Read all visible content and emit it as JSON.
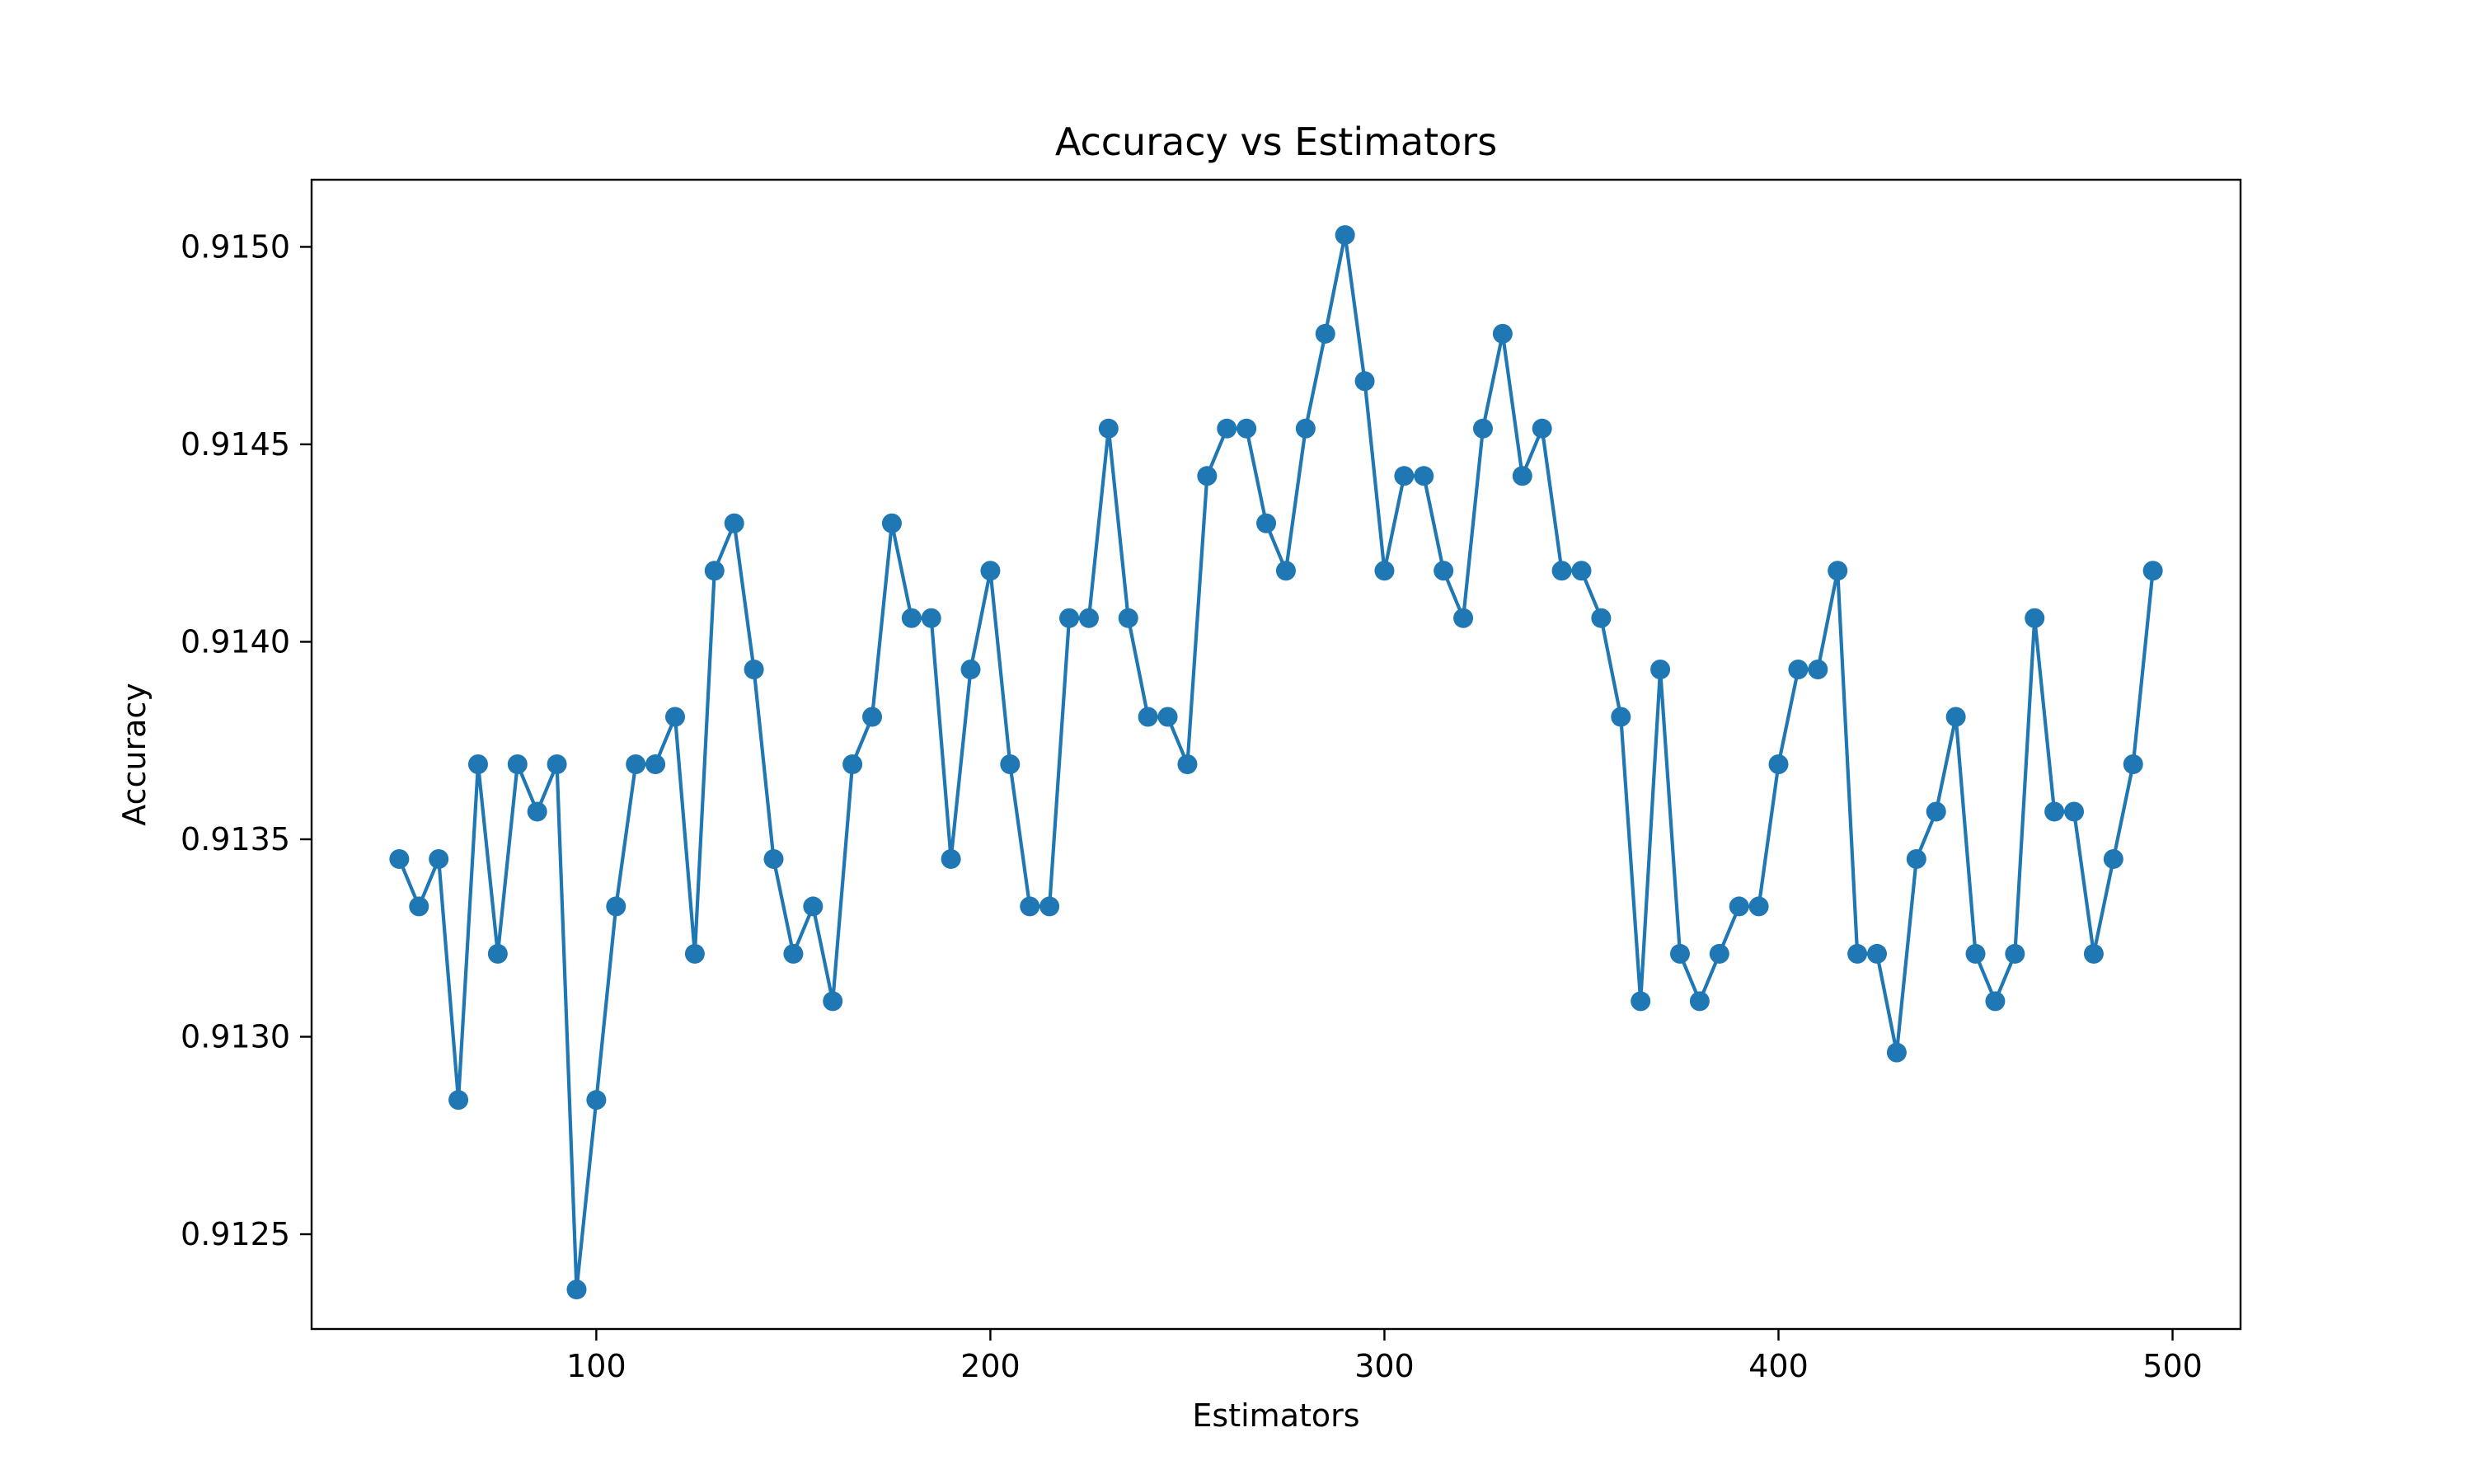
{
  "chart_data": {
    "type": "line",
    "title": "Accuracy vs Estimators",
    "xlabel": "Estimators",
    "ylabel": "Accuracy",
    "xlim": [
      27.75,
      517.25
    ],
    "ylim": [
      0.91226,
      0.91517
    ],
    "xticks": [
      100,
      200,
      300,
      400,
      500
    ],
    "yticks": [
      0.9125,
      0.913,
      0.9135,
      0.914,
      0.9145,
      0.915
    ],
    "ytick_labels": [
      "0.9125",
      "0.9130",
      "0.9135",
      "0.9140",
      "0.9145",
      "0.9150"
    ],
    "grid": false,
    "legend": false,
    "series": [
      {
        "color": "#1f77b4",
        "marker": "circle",
        "x": [
          50,
          55,
          60,
          65,
          70,
          75,
          80,
          85,
          90,
          95,
          100,
          105,
          110,
          115,
          120,
          125,
          130,
          135,
          140,
          145,
          150,
          155,
          160,
          165,
          170,
          175,
          180,
          185,
          190,
          195,
          200,
          205,
          210,
          215,
          220,
          225,
          230,
          235,
          240,
          245,
          250,
          255,
          260,
          265,
          270,
          275,
          280,
          285,
          290,
          295,
          300,
          305,
          310,
          315,
          320,
          325,
          330,
          335,
          340,
          345,
          350,
          355,
          360,
          365,
          370,
          375,
          380,
          385,
          390,
          395,
          400,
          405,
          410,
          415,
          420,
          425,
          430,
          435,
          440,
          445,
          450,
          455,
          460,
          465,
          470,
          475,
          480,
          485,
          490,
          495
        ],
        "y": [
          0.91345,
          0.91333,
          0.91345,
          0.91284,
          0.91369,
          0.91321,
          0.91369,
          0.91357,
          0.91369,
          0.91236,
          0.91284,
          0.91333,
          0.91369,
          0.91369,
          0.91381,
          0.91321,
          0.91418,
          0.9143,
          0.91393,
          0.91345,
          0.91321,
          0.91333,
          0.91309,
          0.91369,
          0.91381,
          0.9143,
          0.91406,
          0.91406,
          0.91345,
          0.91393,
          0.91418,
          0.91369,
          0.91333,
          0.91333,
          0.91406,
          0.91406,
          0.91454,
          0.91406,
          0.91381,
          0.91381,
          0.91369,
          0.91442,
          0.91454,
          0.91454,
          0.9143,
          0.91418,
          0.91454,
          0.91478,
          0.91503,
          0.91466,
          0.91418,
          0.91442,
          0.91442,
          0.91418,
          0.91406,
          0.91454,
          0.91478,
          0.91442,
          0.91454,
          0.91418,
          0.91418,
          0.91406,
          0.91381,
          0.91309,
          0.91393,
          0.91321,
          0.91309,
          0.91321,
          0.91333,
          0.91333,
          0.91369,
          0.91393,
          0.91393,
          0.91418,
          0.91321,
          0.91321,
          0.91296,
          0.91345,
          0.91357,
          0.91381,
          0.91321,
          0.91309,
          0.91321,
          0.91406,
          0.91357,
          0.91357,
          0.91321,
          0.91345,
          0.91369,
          0.91418
        ]
      }
    ]
  }
}
